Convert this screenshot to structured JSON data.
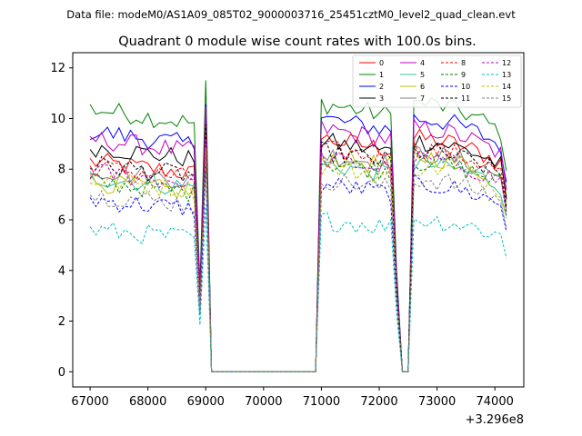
{
  "chart_data": {
    "type": "line",
    "suptitle": "Data file: modeM0/AS1A09_085T02_9000003716_25451cztM0_level2_quad_clean.evt",
    "title": "Quadrant 0 module wise count rates with 100.0s bins.",
    "xlabel": "",
    "ylabel": "",
    "x_offset_label": "+3.296e8",
    "xlim": [
      66700,
      74500
    ],
    "ylim": [
      -0.6,
      12.6
    ],
    "xticks": [
      67000,
      68000,
      69000,
      70000,
      71000,
      72000,
      73000,
      74000
    ],
    "yticks": [
      0,
      2,
      4,
      6,
      8,
      10,
      12
    ],
    "legend_position": "upper-right",
    "x_start": 67000,
    "x_step": 100,
    "n_points": 73,
    "gaps": [
      [
        69100,
        70900
      ],
      [
        72400,
        72500
      ]
    ],
    "segment_ends": [
      68900,
      72300,
      74200
    ],
    "series": [
      {
        "name": "0",
        "color": "#ff0000",
        "dash": "solid",
        "level_a": 8.3,
        "level_b": 9.2
      },
      {
        "name": "1",
        "color": "#008000",
        "dash": "solid",
        "level_a": 10.4,
        "level_b": 10.6
      },
      {
        "name": "2",
        "color": "#0000ff",
        "dash": "solid",
        "level_a": 9.5,
        "level_b": 10.0
      },
      {
        "name": "3",
        "color": "#000000",
        "dash": "solid",
        "level_a": 8.9,
        "level_b": 9.1
      },
      {
        "name": "4",
        "color": "#bf00bf",
        "dash": "solid",
        "level_a": 9.2,
        "level_b": 9.6
      },
      {
        "name": "5",
        "color": "#2ec4a8",
        "dash": "solid",
        "level_a": 7.7,
        "level_b": 8.2
      },
      {
        "name": "6",
        "color": "#bfbf00",
        "dash": "solid",
        "level_a": 7.5,
        "level_b": 8.5
      },
      {
        "name": "7",
        "color": "#808080",
        "dash": "solid",
        "level_a": 8.0,
        "level_b": 8.6
      },
      {
        "name": "8",
        "color": "#ff0000",
        "dash": "dashed",
        "level_a": 8.1,
        "level_b": 8.8
      },
      {
        "name": "9",
        "color": "#008000",
        "dash": "dashed",
        "level_a": 7.5,
        "level_b": 8.3
      },
      {
        "name": "10",
        "color": "#0000ff",
        "dash": "dashed",
        "level_a": 6.8,
        "level_b": 7.4
      },
      {
        "name": "11",
        "color": "#000000",
        "dash": "dashed",
        "level_a": 8.2,
        "level_b": 8.7
      },
      {
        "name": "12",
        "color": "#bf00bf",
        "dash": "dashed",
        "level_a": 7.9,
        "level_b": 8.4
      },
      {
        "name": "13",
        "color": "#00bfbf",
        "dash": "dashed",
        "level_a": 5.6,
        "level_b": 6.0
      },
      {
        "name": "14",
        "color": "#bfbf00",
        "dash": "dashed",
        "level_a": 7.6,
        "level_b": 8.1
      },
      {
        "name": "15",
        "color": "#808080",
        "dash": "dashed",
        "level_a": 7.0,
        "level_b": 7.6
      }
    ]
  }
}
